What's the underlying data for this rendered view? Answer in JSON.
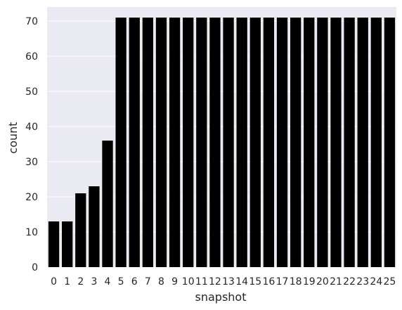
{
  "chart_data": {
    "type": "bar",
    "title": "",
    "xlabel": "snapshot",
    "ylabel": "count",
    "ylim": [
      0,
      74
    ],
    "y_ticks": [
      0,
      10,
      20,
      30,
      40,
      50,
      60,
      70
    ],
    "grid": true,
    "categories": [
      "0",
      "1",
      "2",
      "3",
      "4",
      "5",
      "6",
      "7",
      "8",
      "9",
      "10",
      "11",
      "12",
      "13",
      "14",
      "15",
      "16",
      "17",
      "18",
      "19",
      "20",
      "21",
      "22",
      "23",
      "24",
      "25"
    ],
    "values": [
      13,
      13,
      21,
      23,
      36,
      71,
      71,
      71,
      71,
      71,
      71,
      71,
      71,
      71,
      71,
      71,
      71,
      71,
      71,
      71,
      71,
      71,
      71,
      71,
      71,
      71
    ],
    "colors": {
      "background": "#eaeaf2",
      "grid": "#ffffff",
      "bar": "#000000",
      "text": "#262626"
    }
  }
}
